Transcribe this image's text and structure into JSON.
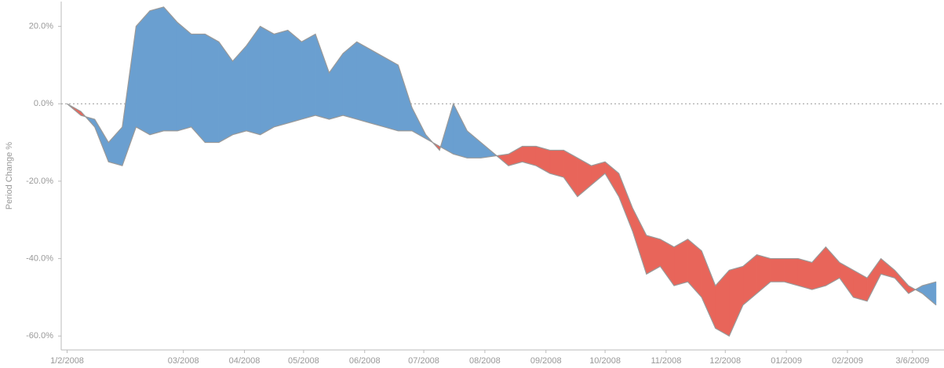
{
  "chart_data": {
    "type": "difference-area",
    "y_axis_label": "Period Change %",
    "x": [
      "2008-01-02",
      "2008-01-09",
      "2008-01-16",
      "2008-01-23",
      "2008-01-30",
      "2008-02-06",
      "2008-02-13",
      "2008-02-20",
      "2008-02-27",
      "2008-03-05",
      "2008-03-12",
      "2008-03-19",
      "2008-03-26",
      "2008-04-02",
      "2008-04-09",
      "2008-04-16",
      "2008-04-23",
      "2008-04-30",
      "2008-05-07",
      "2008-05-14",
      "2008-05-21",
      "2008-05-28",
      "2008-06-04",
      "2008-06-11",
      "2008-06-18",
      "2008-06-25",
      "2008-07-02",
      "2008-07-09",
      "2008-07-16",
      "2008-07-23",
      "2008-07-30",
      "2008-08-06",
      "2008-08-13",
      "2008-08-20",
      "2008-08-27",
      "2008-09-03",
      "2008-09-10",
      "2008-09-17",
      "2008-09-24",
      "2008-10-01",
      "2008-10-08",
      "2008-10-15",
      "2008-10-22",
      "2008-10-29",
      "2008-11-05",
      "2008-11-12",
      "2008-11-19",
      "2008-11-26",
      "2008-12-03",
      "2008-12-10",
      "2008-12-17",
      "2008-12-24",
      "2008-12-31",
      "2009-01-07",
      "2009-01-14",
      "2009-01-21",
      "2009-01-28",
      "2009-02-04",
      "2009-02-11",
      "2009-02-18",
      "2009-02-25",
      "2009-03-04",
      "2009-03-11",
      "2009-03-18"
    ],
    "series": [
      {
        "color": "#999999",
        "values": [
          0,
          -3,
          -4,
          -10,
          -6,
          20,
          24,
          25,
          21,
          18,
          18,
          16,
          11,
          15,
          20,
          18,
          19,
          16,
          18,
          8,
          13,
          16,
          14,
          12,
          10,
          -1,
          -8,
          -12,
          0,
          -7,
          -10,
          -13,
          -16,
          -15,
          -16,
          -18,
          -19,
          -24,
          -21,
          -18,
          -24,
          -33,
          -44,
          -42,
          -47,
          -46,
          -50,
          -58,
          -60,
          -52,
          -49,
          -46,
          -46,
          -47,
          -48,
          -47,
          -45,
          -50,
          -51,
          -44,
          -45,
          -49,
          -47,
          -46
        ]
      },
      {
        "color": "#999999",
        "values": [
          0,
          -2,
          -6,
          -15,
          -16,
          -6,
          -8,
          -7,
          -7,
          -6,
          -10,
          -10,
          -8,
          -7,
          -8,
          -6,
          -5,
          -4,
          -3,
          -4,
          -3,
          -4,
          -5,
          -6,
          -7,
          -7,
          -9,
          -11,
          -13,
          -14,
          -14,
          -13.5,
          -13,
          -11,
          -11,
          -12,
          -12,
          -14,
          -16,
          -15,
          -18,
          -27,
          -34,
          -35,
          -37,
          -35,
          -38,
          -47,
          -43,
          -42,
          -39,
          -40,
          -40,
          -40,
          -41,
          -37,
          -41,
          -43,
          -45,
          -40,
          -43,
          -47,
          -49,
          -52
        ]
      }
    ],
    "above_color": "#6a9fd0",
    "below_color": "#e8655a",
    "xlim": [
      "2007-12-30",
      "2009-03-22"
    ],
    "xticks": [
      {
        "value": "2008-01-02",
        "label": "1/2/2008"
      },
      {
        "value": "2008-03-01",
        "label": "03/2008"
      },
      {
        "value": "2008-04-01",
        "label": "04/2008"
      },
      {
        "value": "2008-05-01",
        "label": "05/2008"
      },
      {
        "value": "2008-06-01",
        "label": "06/2008"
      },
      {
        "value": "2008-07-01",
        "label": "07/2008"
      },
      {
        "value": "2008-08-01",
        "label": "08/2008"
      },
      {
        "value": "2008-09-01",
        "label": "09/2008"
      },
      {
        "value": "2008-10-01",
        "label": "10/2008"
      },
      {
        "value": "2008-11-01",
        "label": "11/2008"
      },
      {
        "value": "2008-12-01",
        "label": "12/2008"
      },
      {
        "value": "2009-01-01",
        "label": "01/2009"
      },
      {
        "value": "2009-02-01",
        "label": "02/2009"
      },
      {
        "value": "2009-03-06",
        "label": "3/6/2009"
      }
    ],
    "ylim": [
      -63.6,
      26.4
    ],
    "yticks": [
      {
        "value": 20,
        "label": "20.0%"
      },
      {
        "value": 0,
        "label": "0.0%"
      },
      {
        "value": -20,
        "label": "-20.0%"
      },
      {
        "value": -40,
        "label": "-40.0%"
      },
      {
        "value": -60,
        "label": "-60.0%"
      }
    ],
    "zero_line": true
  }
}
